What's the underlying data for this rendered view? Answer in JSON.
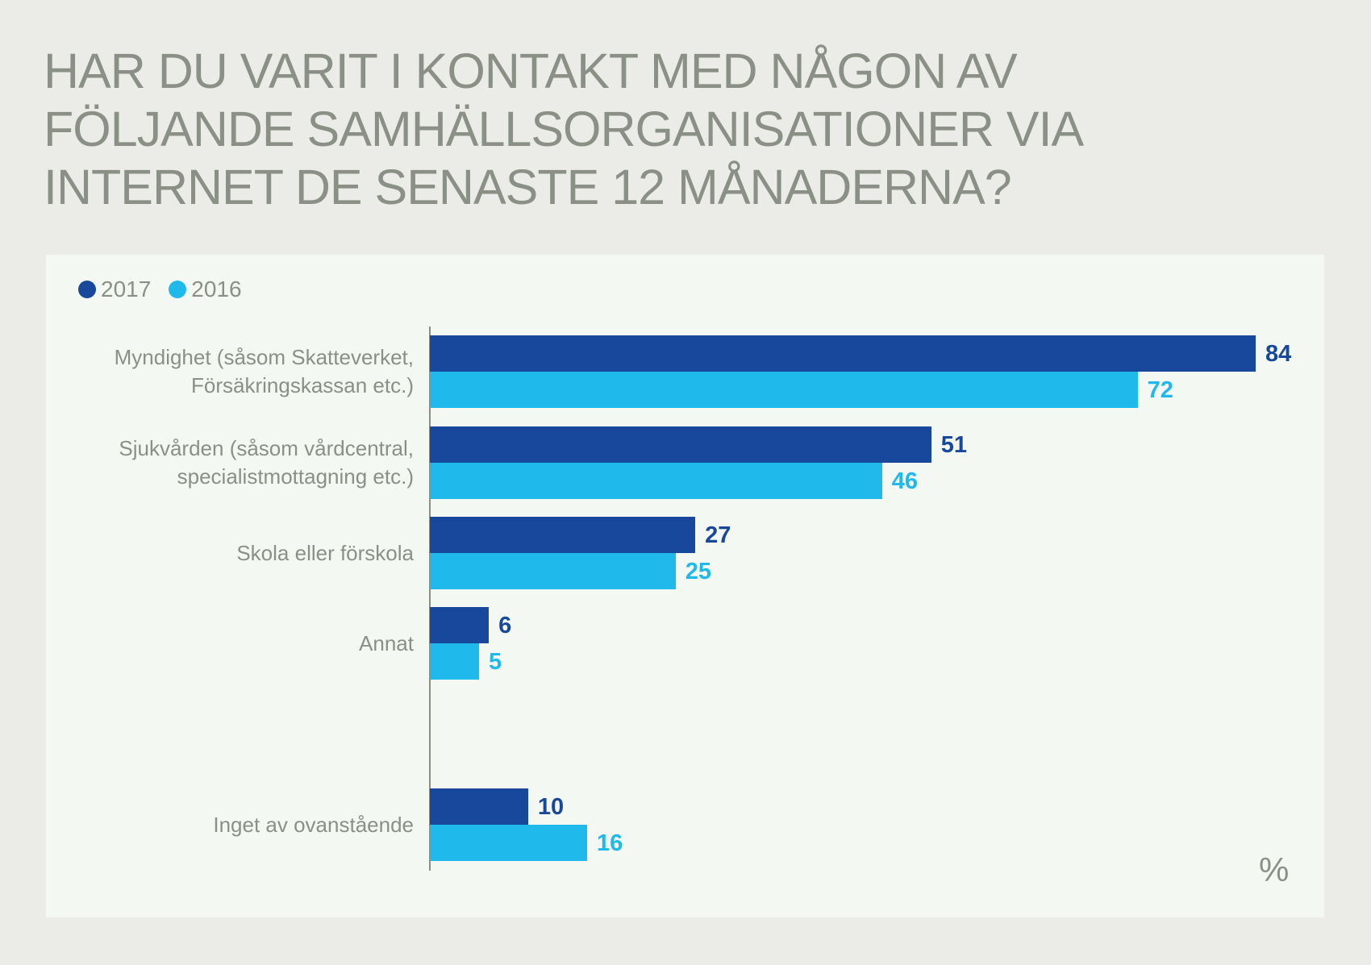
{
  "chart_data": {
    "type": "bar",
    "orientation": "horizontal",
    "title_lines": [
      "HAR DU VARIT I KONTAKT MED NÅGON AV",
      "FÖLJANDE SAMHÄLLSORGANISATIONER VIA",
      "INTERNET DE SENASTE 12 MÅNADERNA?"
    ],
    "categories": [
      [
        "Myndighet (såsom Skatteverket,",
        "Försäkringskassan etc.)"
      ],
      [
        "Sjukvården (såsom vårdcentral,",
        "specialistmottagning etc.)"
      ],
      [
        "Skola eller förskola"
      ],
      [
        "Annat"
      ],
      [
        "Inget av ovanstående"
      ]
    ],
    "series": [
      {
        "name": "2017",
        "color": "#18489b",
        "values": [
          84,
          51,
          27,
          6,
          10
        ]
      },
      {
        "name": "2016",
        "color": "#20b9ec",
        "values": [
          72,
          46,
          25,
          5,
          16
        ]
      }
    ],
    "unit_label": "%",
    "legend_position": "top-left",
    "grid": false,
    "xlim": [
      0,
      100
    ]
  }
}
